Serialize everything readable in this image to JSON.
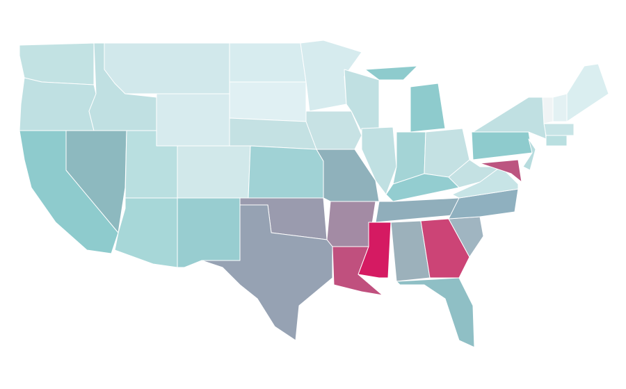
{
  "map": {
    "fills": [
      "#c2e2e3",
      "#bfe0e2",
      "#8ecbcd",
      "#8db9bf",
      "#c0e0e2",
      "#d1e8eb",
      "#d7ebee",
      "#b9dfe0",
      "#d1e8ea",
      "#a7d7d8",
      "#98cdd0",
      "#d7ecef",
      "#e0f0f3",
      "#c4e1e3",
      "#a0d2d5",
      "#9a9bae",
      "#96a2b3",
      "#d6ebee",
      "#c7e2e4",
      "#8fb1bb",
      "#a38ba4",
      "#c0507e",
      "#c0e0e2",
      "#c0e0e2",
      "#d51a62",
      "#8ecbcd",
      "#8ecbcd",
      "#a4d4d6",
      "#c4e1e3",
      "#93cdd0",
      "#90aebb",
      "#9cb1bb",
      "#cc4476",
      "#8fbfc5",
      "#a0b5c1",
      "#8fb0bf",
      "#c7e4e6",
      "#c4e1e3",
      "#8ecbcd",
      "#c0e0e2",
      "#bc5580",
      "#b7dcde",
      "#f0f4f5",
      "#e3f1f3",
      "#daeef0",
      "#c7e4e6",
      "#b9dfe0"
    ]
  }
}
